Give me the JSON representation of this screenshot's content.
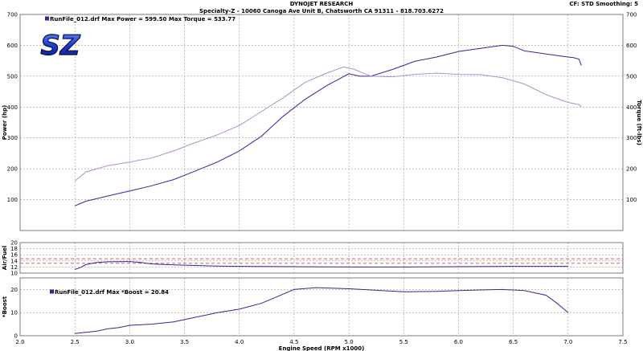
{
  "header": {
    "title": "DYNOJET RESEARCH",
    "subtitle": "Specialty-Z - 10060 Canoga Ave Unit B, Chatsworth CA 91311 - 818.703.6272",
    "right": "CF: STD  Smoothing: 5"
  },
  "logo_text": "SZ",
  "chart_data": [
    {
      "type": "line",
      "legend": "RunFile_012.drf Max Power = 599.50    Max Torque = 533.77",
      "ylabel_left": "Power (hp)",
      "ylabel_right": "Torque (ft-lbs)",
      "xlim": [
        2.0,
        7.5
      ],
      "ylim": [
        0,
        700
      ],
      "yticks": [
        0,
        100,
        200,
        300,
        400,
        500,
        600,
        700
      ],
      "grid": true,
      "series": [
        {
          "label": "Power",
          "color": "#2a2a9a",
          "x": [
            2.5,
            2.6,
            2.8,
            3.0,
            3.2,
            3.4,
            3.6,
            3.8,
            4.0,
            4.2,
            4.4,
            4.6,
            4.8,
            5.0,
            5.1,
            5.2,
            5.4,
            5.6,
            5.8,
            6.0,
            6.2,
            6.4,
            6.5,
            6.6,
            6.8,
            7.0,
            7.05,
            7.1,
            7.12
          ],
          "y": [
            80,
            95,
            112,
            128,
            145,
            165,
            193,
            222,
            258,
            305,
            370,
            425,
            470,
            508,
            500,
            500,
            522,
            548,
            562,
            580,
            590,
            600,
            597,
            582,
            572,
            562,
            560,
            555,
            535
          ]
        },
        {
          "label": "Torque",
          "color": "#9a9ac8",
          "x": [
            2.5,
            2.6,
            2.8,
            3.0,
            3.2,
            3.4,
            3.6,
            3.8,
            4.0,
            4.2,
            4.4,
            4.6,
            4.8,
            4.95,
            5.05,
            5.2,
            5.4,
            5.6,
            5.8,
            6.0,
            6.2,
            6.4,
            6.6,
            6.8,
            7.0,
            7.1,
            7.12
          ],
          "y": [
            160,
            190,
            210,
            222,
            235,
            258,
            285,
            310,
            340,
            385,
            430,
            480,
            510,
            530,
            522,
            500,
            498,
            506,
            510,
            506,
            505,
            495,
            475,
            440,
            415,
            408,
            400
          ]
        }
      ]
    },
    {
      "type": "line",
      "ylabel": "Air/Fuel",
      "xlim": [
        2.0,
        7.5
      ],
      "ylim": [
        10,
        20
      ],
      "yticks": [
        10,
        12,
        14,
        16,
        18,
        20
      ],
      "grid": true,
      "reference_lines": [
        {
          "y": 13.2,
          "color": "#cc2222",
          "style": "dashed"
        },
        {
          "y": 14.7,
          "color": "#cc2222",
          "style": "dashed"
        }
      ],
      "series": [
        {
          "label": "Air/Fuel",
          "color": "#2a2a9a",
          "x": [
            2.5,
            2.55,
            2.6,
            2.7,
            2.8,
            3.0,
            3.1,
            3.2,
            3.4,
            3.6,
            3.8,
            4.0,
            4.5,
            5.0,
            5.5,
            6.0,
            6.5,
            7.0
          ],
          "y": [
            11.2,
            11.8,
            12.8,
            13.5,
            13.7,
            13.8,
            13.5,
            13.0,
            12.7,
            12.5,
            12.3,
            12.2,
            12.1,
            12.0,
            12.0,
            12.1,
            12.2,
            12.2
          ]
        }
      ]
    },
    {
      "type": "line",
      "legend": "RunFile_012.drf Max *Boost = 20.84",
      "ylabel": "*Boost",
      "xlabel": "Engine Speed (RPM x1000)",
      "xlim": [
        2.0,
        7.5
      ],
      "xticks": [
        2.0,
        2.5,
        3.0,
        3.5,
        4.0,
        4.5,
        5.0,
        5.5,
        6.0,
        6.5,
        7.0,
        7.5
      ],
      "ylim": [
        0,
        25
      ],
      "yticks": [
        0,
        10,
        20
      ],
      "grid": true,
      "series": [
        {
          "label": "Boost",
          "color": "#2a2a9a",
          "x": [
            2.5,
            2.6,
            2.7,
            2.8,
            2.9,
            3.0,
            3.2,
            3.4,
            3.6,
            3.8,
            4.0,
            4.2,
            4.4,
            4.5,
            4.7,
            5.0,
            5.3,
            5.5,
            5.8,
            6.0,
            6.2,
            6.4,
            6.6,
            6.8,
            6.9,
            7.0
          ],
          "y": [
            1,
            1.5,
            2,
            3,
            3.5,
            4.5,
            5,
            6,
            8,
            10,
            11.5,
            14,
            18,
            20,
            20.8,
            20.3,
            19.5,
            19,
            19.2,
            19.5,
            19.8,
            20,
            19.5,
            17.5,
            14,
            10
          ]
        }
      ]
    }
  ]
}
